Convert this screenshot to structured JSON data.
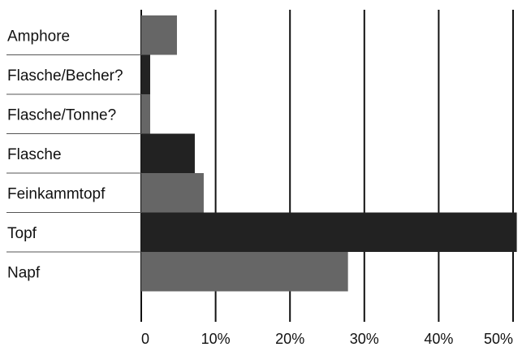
{
  "chart_data": {
    "type": "bar",
    "orientation": "horizontal",
    "categories": [
      "Amphore",
      "Flasche/Becher?",
      "Flasche/Tonne?",
      "Flasche",
      "Feinkammtopf",
      "Topf",
      "Napf"
    ],
    "values": [
      4.8,
      1.2,
      1.2,
      7.2,
      8.4,
      50.5,
      27.8
    ],
    "xlim": [
      0,
      50
    ],
    "xticks": [
      0,
      10,
      20,
      30,
      40,
      50
    ],
    "xtick_labels": [
      "0",
      "10%",
      "20%",
      "30%",
      "40%",
      "50%"
    ],
    "title": "",
    "xlabel": "",
    "ylabel": "",
    "grid": "vertical",
    "legend": "none",
    "bar_colors": [
      "#666666",
      "#222222",
      "#666666",
      "#222222",
      "#666666",
      "#222222",
      "#666666"
    ]
  }
}
